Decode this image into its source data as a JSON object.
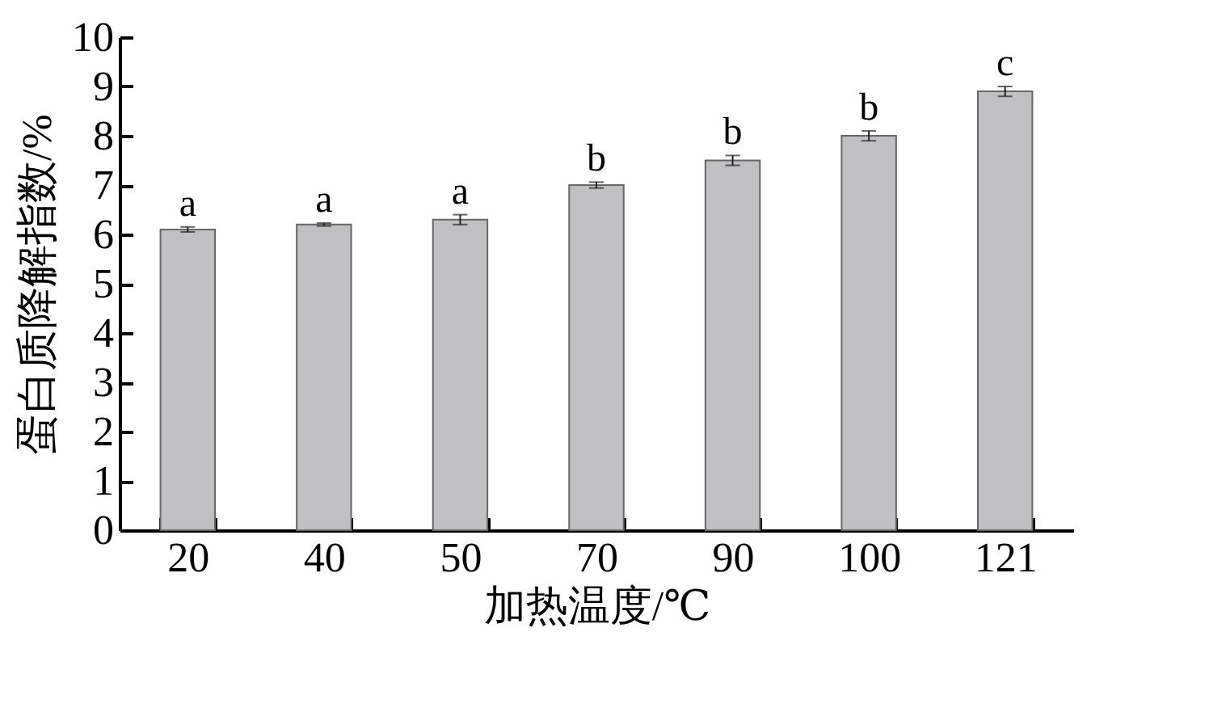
{
  "chart_data": {
    "type": "bar",
    "xlabel": "加热温度/℃",
    "ylabel": "蛋白质降解指数/%",
    "categories": [
      "20",
      "40",
      "50",
      "70",
      "90",
      "100",
      "121"
    ],
    "values": [
      6.1,
      6.2,
      6.3,
      7.0,
      7.5,
      8.0,
      8.9
    ],
    "errors": [
      0.05,
      0.03,
      0.1,
      0.06,
      0.1,
      0.1,
      0.1
    ],
    "color": "#bfc0c2",
    "ylim": [
      0,
      10
    ],
    "yticks": [
      0,
      1,
      2,
      3,
      4,
      5,
      6,
      7,
      8,
      9,
      10
    ],
    "grid": false,
    "annotations": [
      {
        "text": "a",
        "x": "20",
        "y": 6.15
      },
      {
        "text": "a",
        "x": "40",
        "y": 6.23
      },
      {
        "text": "a",
        "x": "50",
        "y": 6.4
      },
      {
        "text": "b",
        "x": "70",
        "y": 7.06
      },
      {
        "text": "b",
        "x": "90",
        "y": 7.6
      },
      {
        "text": "b",
        "x": "100",
        "y": 8.1
      },
      {
        "text": "c",
        "x": "121",
        "y": 9.0
      }
    ]
  }
}
